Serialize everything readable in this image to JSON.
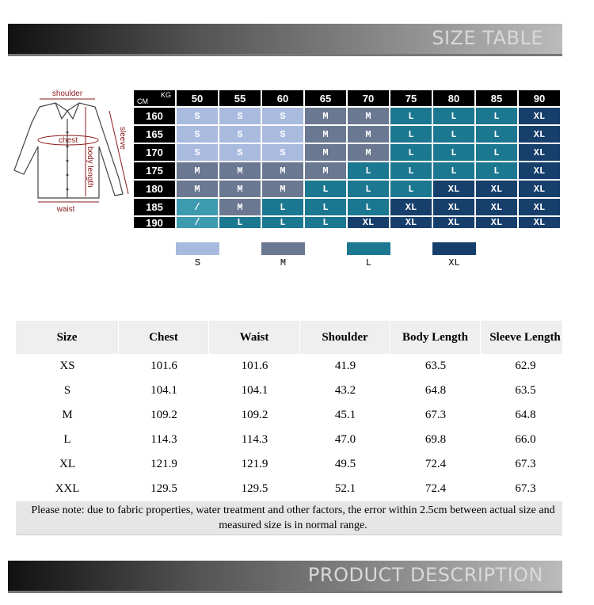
{
  "header": {
    "title": "SIZE TABLE"
  },
  "diagram": {
    "shoulder": "shoulder",
    "chest": "chest",
    "sleeve": "sleeve",
    "body_length": "body length",
    "waist": "waist"
  },
  "size_chart": {
    "kg_label": "KG",
    "cm_label": "CM",
    "weights": [
      "50",
      "55",
      "60",
      "65",
      "70",
      "75",
      "80",
      "85",
      "90"
    ],
    "heights": [
      "160",
      "165",
      "170",
      "175",
      "180",
      "185",
      "190"
    ],
    "cells": [
      [
        "S",
        "S",
        "S",
        "M",
        "M",
        "L",
        "L",
        "L",
        "XL"
      ],
      [
        "S",
        "S",
        "S",
        "M",
        "M",
        "L",
        "L",
        "L",
        "XL"
      ],
      [
        "S",
        "S",
        "S",
        "M",
        "M",
        "L",
        "L",
        "L",
        "XL"
      ],
      [
        "M",
        "M",
        "M",
        "M",
        "L",
        "L",
        "L",
        "L",
        "XL"
      ],
      [
        "M",
        "M",
        "M",
        "L",
        "L",
        "L",
        "XL",
        "XL",
        "XL"
      ],
      [
        "/",
        "M",
        "L",
        "L",
        "L",
        "XL",
        "XL",
        "XL",
        "XL"
      ],
      [
        "/",
        "L",
        "L",
        "L",
        "XL",
        "XL",
        "XL",
        "XL",
        "XL"
      ]
    ]
  },
  "legend": [
    {
      "label": "S",
      "color": "#a9badf"
    },
    {
      "label": "M",
      "color": "#6a7891"
    },
    {
      "label": "L",
      "color": "#1c7891"
    },
    {
      "label": "XL",
      "color": "#173f6c"
    }
  ],
  "table": {
    "columns": [
      "Size",
      "Chest",
      "Waist",
      "Shoulder",
      "Body Length",
      "Sleeve Length"
    ],
    "rows": [
      [
        "XS",
        "101.6",
        "101.6",
        "41.9",
        "63.5",
        "62.9"
      ],
      [
        "S",
        "104.1",
        "104.1",
        "43.2",
        "64.8",
        "63.5"
      ],
      [
        "M",
        "109.2",
        "109.2",
        "45.1",
        "67.3",
        "64.8"
      ],
      [
        "L",
        "114.3",
        "114.3",
        "47.0",
        "69.8",
        "66.0"
      ],
      [
        "XL",
        "121.9",
        "121.9",
        "49.5",
        "72.4",
        "67.3"
      ],
      [
        "XXL",
        "129.5",
        "129.5",
        "52.1",
        "72.4",
        "67.3"
      ]
    ],
    "note": "Please note: due to fabric properties, water treatment and other factors, the error within 2.5cm between actual size and measured size is in normal range."
  },
  "footer": {
    "title": "PRODUCT DESCRIPTION"
  }
}
